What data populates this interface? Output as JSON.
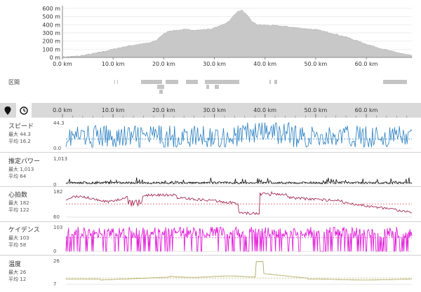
{
  "elevation_chart": {
    "type": "area",
    "y_ticks": [
      "600 m",
      "500 m",
      "400 m",
      "300 m",
      "200 m",
      "100 m",
      "0 m"
    ],
    "y_values": [
      600,
      500,
      400,
      300,
      200,
      100,
      0
    ],
    "ylim": [
      0,
      600
    ],
    "x_ticks": [
      "0.0 km",
      "10.0 km",
      "20.0 km",
      "30.0 km",
      "40.0 km",
      "50.0 km",
      "60.0 km"
    ],
    "x_values": [
      0,
      10,
      20,
      30,
      40,
      50,
      60
    ],
    "xlim": [
      0,
      69
    ],
    "profile": [
      [
        0,
        5
      ],
      [
        3,
        15
      ],
      [
        6,
        45
      ],
      [
        9,
        85
      ],
      [
        11,
        115
      ],
      [
        13,
        140
      ],
      [
        15,
        160
      ],
      [
        17,
        175
      ],
      [
        18.5,
        205
      ],
      [
        19.5,
        265
      ],
      [
        21,
        325
      ],
      [
        24,
        340
      ],
      [
        27,
        335
      ],
      [
        29.5,
        350
      ],
      [
        31.5,
        395
      ],
      [
        33,
        450
      ],
      [
        34.5,
        560
      ],
      [
        35.5,
        575
      ],
      [
        36.5,
        510
      ],
      [
        37.5,
        435
      ],
      [
        38.5,
        400
      ],
      [
        40,
        395
      ],
      [
        43,
        385
      ],
      [
        46,
        365
      ],
      [
        50,
        340
      ],
      [
        53,
        300
      ],
      [
        56,
        250
      ],
      [
        59,
        185
      ],
      [
        62,
        125
      ],
      [
        65,
        75
      ],
      [
        67.5,
        40
      ],
      [
        69,
        20
      ]
    ],
    "fill_color": "#c8c8c8"
  },
  "sections": {
    "label": "区間",
    "color": "#c4c4c4"
  },
  "tabs": [
    {
      "name": "map-pin",
      "icon": "map-pin-icon"
    },
    {
      "name": "clock",
      "icon": "clock-icon"
    }
  ],
  "shared_x_ticks": [
    "0.0 km",
    "10.0 km",
    "20.0 km",
    "30.0 km",
    "40.0 km",
    "50.0 km",
    "60.0 km"
  ],
  "metrics": [
    {
      "name": "スピード",
      "max_label": "最大",
      "max": "44.3",
      "avg_label": "平均",
      "avg": "16.2",
      "y_top": "44.3",
      "y_bottom": "0.0",
      "top": 44.3,
      "bottom": 0,
      "avg_val": 16.2,
      "color": "#2a7fc0",
      "avg_color": "#2a7fc0"
    },
    {
      "name": "推定パワー",
      "max_label": "最大",
      "max": "1,013",
      "avg_label": "平均",
      "avg": "64",
      "y_top": "1,013",
      "y_bottom": "0",
      "top": 1013,
      "bottom": 0,
      "avg_val": 64,
      "color": "#111111",
      "avg_color": "#111111"
    },
    {
      "name": "心拍数",
      "max_label": "最大",
      "max": "182",
      "avg_label": "平均",
      "avg": "122",
      "y_top": "182",
      "y_bottom": "60",
      "top": 182,
      "bottom": 60,
      "avg_val": 122,
      "color": "#9a1545",
      "avg_color": "#d83030"
    },
    {
      "name": "ケイデンス",
      "max_label": "最大",
      "max": "103",
      "avg_label": "平均",
      "avg": "58",
      "y_top": "103",
      "y_bottom": "0",
      "top": 103,
      "bottom": 0,
      "avg_val": 58,
      "color": "#e21fd9",
      "avg_color": "#e21fd9"
    },
    {
      "name": "温度",
      "max_label": "最大",
      "max": "26",
      "avg_label": "平均",
      "avg": "12",
      "y_top": "26",
      "y_bottom": "7",
      "top": 26,
      "bottom": 7,
      "avg_val": 12,
      "color": "#a8a050",
      "avg_color": "#a8a050"
    }
  ]
}
